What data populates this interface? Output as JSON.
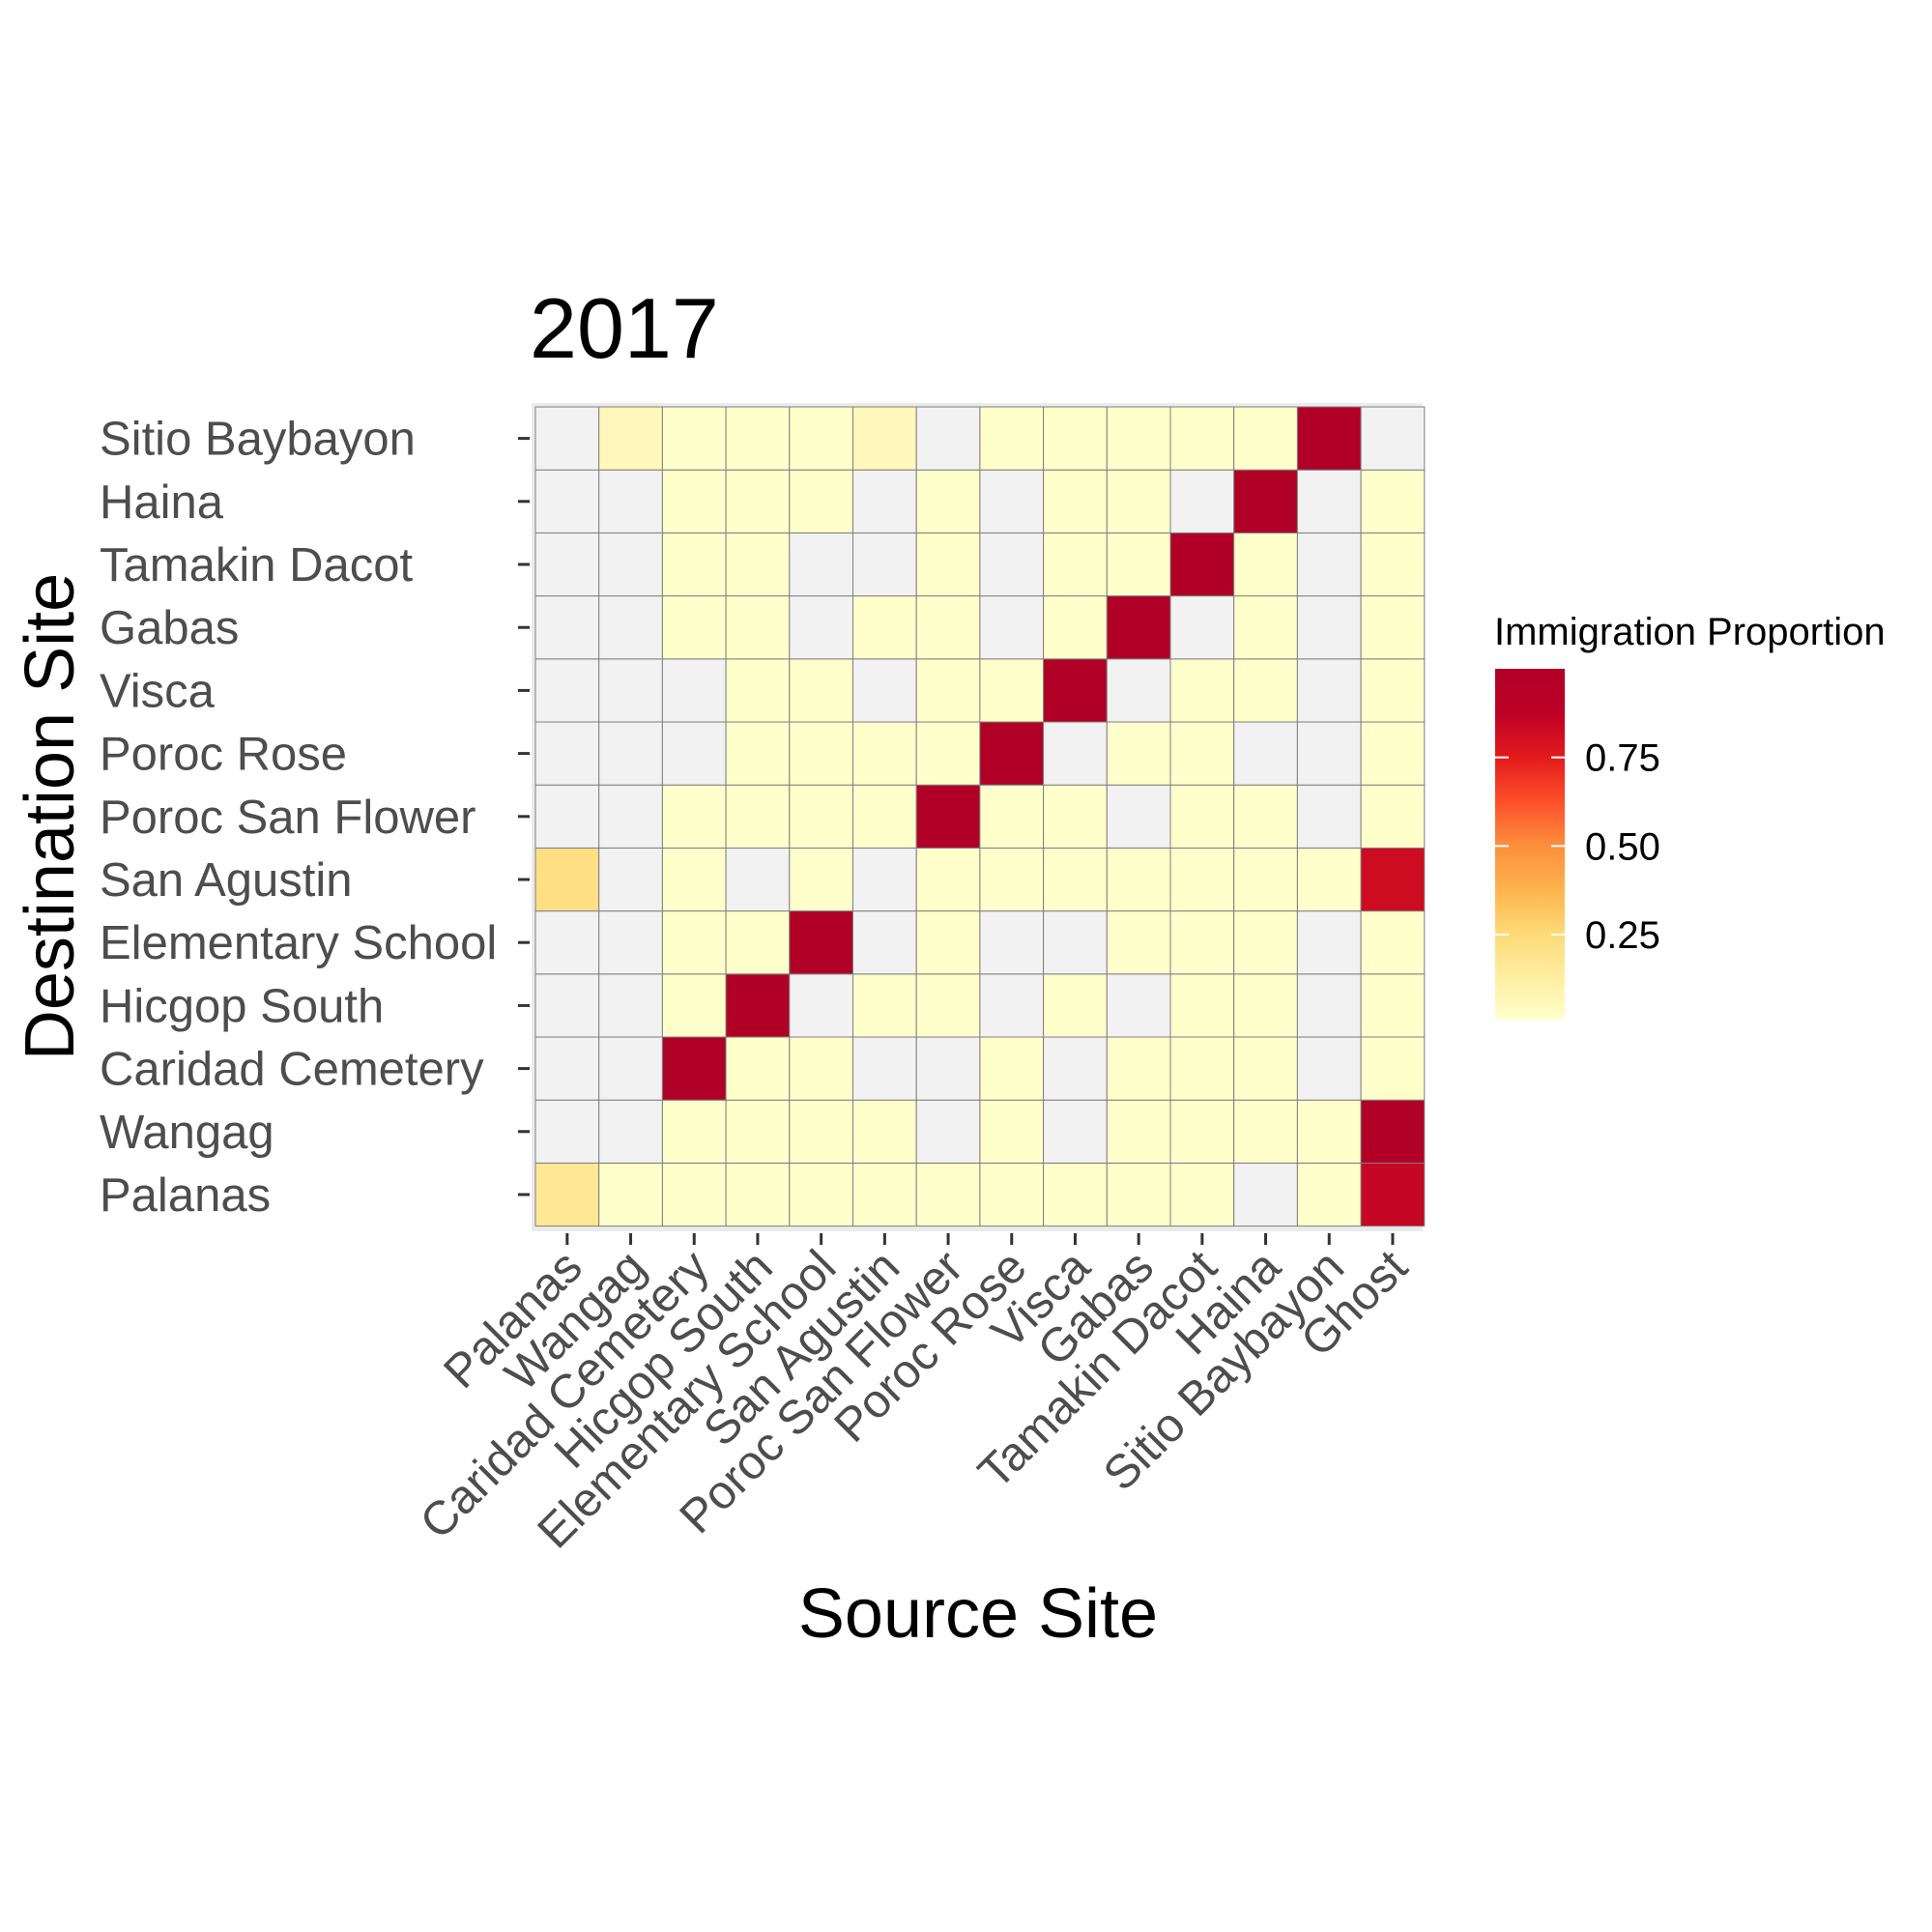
{
  "chart_data": {
    "type": "heatmap",
    "title": "2017",
    "xlabel": "Source Site",
    "ylabel": "Destination Site",
    "x_categories": [
      "Palanas",
      "Wangag",
      "Caridad Cemetery",
      "Hicgop South",
      "Elementary School",
      "San Agustin",
      "Poroc San Flower",
      "Poroc Rose",
      "Visca",
      "Gabas",
      "Tamakin Dacot",
      "Haina",
      "Sitio Baybayon",
      "Ghost"
    ],
    "y_categories": [
      "Palanas",
      "Wangag",
      "Caridad Cemetery",
      "Hicgop South",
      "Elementary School",
      "San Agustin",
      "Poroc San Flower",
      "Poroc Rose",
      "Visca",
      "Gabas",
      "Tamakin Dacot",
      "Haina",
      "Sitio Baybayon"
    ],
    "values": [
      [
        0.17,
        0.01,
        0.01,
        0.01,
        0.01,
        0.01,
        0.01,
        0.01,
        0.01,
        0.01,
        0.01,
        null,
        0.01,
        0.85
      ],
      [
        null,
        null,
        0.01,
        0.01,
        0.01,
        0.01,
        null,
        0.01,
        null,
        0.01,
        0.01,
        0.01,
        0.01,
        1.0
      ],
      [
        null,
        null,
        1.0,
        0.01,
        0.01,
        null,
        null,
        0.01,
        null,
        0.01,
        0.01,
        0.01,
        null,
        0.01
      ],
      [
        null,
        null,
        0.01,
        1.0,
        null,
        0.01,
        0.01,
        null,
        0.01,
        null,
        0.01,
        0.01,
        null,
        0.01
      ],
      [
        null,
        null,
        0.01,
        0.01,
        1.0,
        null,
        0.01,
        null,
        null,
        0.01,
        0.01,
        0.01,
        null,
        0.01
      ],
      [
        0.22,
        null,
        0.01,
        null,
        0.01,
        null,
        0.01,
        0.01,
        0.01,
        0.01,
        0.01,
        0.01,
        0.01,
        0.82
      ],
      [
        null,
        null,
        0.01,
        0.01,
        0.01,
        0.01,
        1.0,
        0.01,
        0.01,
        null,
        0.01,
        0.01,
        null,
        0.01
      ],
      [
        null,
        null,
        null,
        0.01,
        0.01,
        0.01,
        0.01,
        1.0,
        null,
        0.01,
        0.01,
        null,
        null,
        0.01
      ],
      [
        null,
        null,
        null,
        0.01,
        0.01,
        null,
        0.01,
        0.01,
        1.0,
        null,
        0.01,
        0.01,
        null,
        0.01
      ],
      [
        null,
        null,
        0.01,
        0.01,
        null,
        0.01,
        0.01,
        null,
        0.01,
        1.0,
        null,
        0.01,
        null,
        0.01
      ],
      [
        null,
        null,
        0.01,
        0.01,
        null,
        null,
        0.01,
        null,
        0.01,
        0.01,
        1.0,
        0.01,
        null,
        0.01
      ],
      [
        null,
        null,
        0.01,
        0.01,
        0.01,
        null,
        0.01,
        null,
        0.01,
        0.01,
        null,
        1.0,
        null,
        0.01
      ],
      [
        null,
        0.06,
        0.01,
        0.01,
        0.01,
        0.06,
        null,
        0.01,
        0.01,
        0.01,
        0.01,
        0.01,
        1.0,
        null
      ]
    ],
    "na_color": "#f2f2f2",
    "legend": {
      "title": "Immigration Proportion",
      "placement": "right",
      "ticks": [
        0.25,
        0.5,
        0.75
      ],
      "tick_labels": [
        "0.25",
        "0.50",
        "0.75"
      ],
      "range": [
        0.01,
        1.0
      ],
      "colors": [
        "#ffffcc",
        "#ffeda0",
        "#fed976",
        "#feb24c",
        "#fd8d3c",
        "#fc4e2a",
        "#e31a1c",
        "#bd0026",
        "#b10026"
      ]
    },
    "panel_background": "#ebebeb",
    "grid": false
  }
}
